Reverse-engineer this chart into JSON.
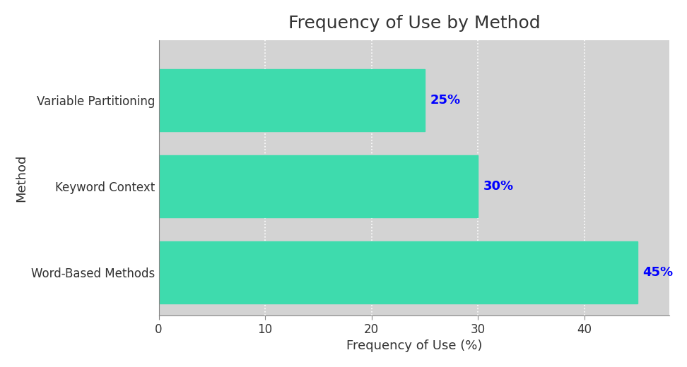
{
  "title": "Frequency of Use by Method",
  "categories": [
    "Word-Based Methods",
    "Keyword Context",
    "Variable Partitioning"
  ],
  "values": [
    45,
    30,
    25
  ],
  "bar_color": "#3EDBAD",
  "label_color": "blue",
  "xlabel": "Frequency of Use (%)",
  "ylabel": "Method",
  "xlim": [
    0,
    48
  ],
  "xticks": [
    0,
    10,
    20,
    30,
    40
  ],
  "background_color": "#D3D3D3",
  "title_fontsize": 18,
  "axis_label_fontsize": 13,
  "tick_fontsize": 12,
  "bar_label_fontsize": 13,
  "bar_height": 0.72
}
